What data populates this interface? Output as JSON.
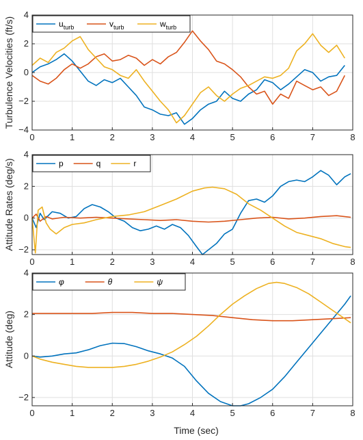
{
  "chart_data": [
    {
      "type": "line",
      "ylabel": "Turbulence Velocities (ft/s)",
      "xlabel": "",
      "xlim": [
        0,
        8
      ],
      "ylim": [
        -4,
        4
      ],
      "xticks": [
        "0",
        "1",
        "2",
        "3",
        "4",
        "5",
        "6",
        "7",
        "8"
      ],
      "yticks": [
        "-4",
        "-2",
        "0",
        "2",
        "4"
      ],
      "grid": true,
      "legend_position": "top-left",
      "series": [
        {
          "name": "u",
          "name_sub": "turb",
          "color": "#0072BD",
          "x": [
            0,
            0.2,
            0.4,
            0.6,
            0.8,
            1.0,
            1.2,
            1.4,
            1.6,
            1.8,
            2.0,
            2.2,
            2.4,
            2.6,
            2.8,
            3.0,
            3.2,
            3.4,
            3.6,
            3.8,
            4.0,
            4.2,
            4.4,
            4.6,
            4.8,
            5.0,
            5.2,
            5.4,
            5.6,
            5.8,
            6.0,
            6.2,
            6.4,
            6.6,
            6.8,
            7.0,
            7.2,
            7.4,
            7.6,
            7.8
          ],
          "y": [
            0,
            0.4,
            0.6,
            0.9,
            1.3,
            0.8,
            0.1,
            -0.6,
            -0.9,
            -0.5,
            -0.7,
            -0.4,
            -1.0,
            -1.6,
            -2.4,
            -2.6,
            -2.9,
            -3.0,
            -2.8,
            -3.6,
            -3.2,
            -2.6,
            -2.2,
            -2.0,
            -1.3,
            -1.8,
            -2.0,
            -1.5,
            -1.2,
            -0.5,
            -0.7,
            -1.2,
            -0.8,
            -0.3,
            0.2,
            0.0,
            -0.6,
            -0.3,
            -0.2,
            0.5
          ]
        },
        {
          "name": "v",
          "name_sub": "turb",
          "color": "#D95319",
          "x": [
            0,
            0.2,
            0.4,
            0.6,
            0.8,
            1.0,
            1.2,
            1.4,
            1.6,
            1.8,
            2.0,
            2.2,
            2.4,
            2.6,
            2.8,
            3.0,
            3.2,
            3.4,
            3.6,
            3.8,
            4.0,
            4.2,
            4.4,
            4.6,
            4.8,
            5.0,
            5.2,
            5.4,
            5.6,
            5.8,
            6.0,
            6.2,
            6.4,
            6.6,
            6.8,
            7.0,
            7.2,
            7.4,
            7.6,
            7.8
          ],
          "y": [
            -0.2,
            -0.6,
            -0.8,
            -0.4,
            0.2,
            0.6,
            0.3,
            0.6,
            1.1,
            1.3,
            0.8,
            0.9,
            1.2,
            1.0,
            0.5,
            0.9,
            0.6,
            1.1,
            1.4,
            2.1,
            2.9,
            2.2,
            1.6,
            0.8,
            0.6,
            0.2,
            -0.3,
            -1.0,
            -1.5,
            -1.3,
            -2.2,
            -1.5,
            -1.8,
            -0.6,
            -0.9,
            -1.2,
            -1.0,
            -1.6,
            -1.3,
            -0.2
          ]
        },
        {
          "name": "w",
          "name_sub": "turb",
          "color": "#EDB120",
          "x": [
            0,
            0.2,
            0.4,
            0.6,
            0.8,
            1.0,
            1.2,
            1.4,
            1.6,
            1.8,
            2.0,
            2.2,
            2.4,
            2.6,
            2.8,
            3.0,
            3.2,
            3.4,
            3.6,
            3.8,
            4.0,
            4.2,
            4.4,
            4.6,
            4.8,
            5.0,
            5.2,
            5.4,
            5.6,
            5.8,
            6.0,
            6.2,
            6.4,
            6.6,
            6.8,
            7.0,
            7.2,
            7.4,
            7.6,
            7.8
          ],
          "y": [
            0.5,
            1.0,
            0.7,
            1.4,
            1.7,
            2.2,
            2.5,
            1.6,
            1.0,
            0.4,
            0.2,
            -0.2,
            -0.4,
            0.2,
            -0.6,
            -1.3,
            -2.0,
            -2.6,
            -3.5,
            -3.0,
            -2.2,
            -1.4,
            -1.0,
            -1.6,
            -2.0,
            -1.5,
            -1.1,
            -0.9,
            -0.6,
            -0.3,
            -0.4,
            -0.2,
            0.3,
            1.5,
            2.0,
            2.7,
            1.9,
            1.4,
            1.9,
            1.0
          ]
        }
      ]
    },
    {
      "type": "line",
      "ylabel": "Attitude Rates (deg/s)",
      "xlabel": "",
      "xlim": [
        0,
        8
      ],
      "ylim": [
        -2.3,
        4
      ],
      "xticks": [
        "0",
        "1",
        "2",
        "3",
        "4",
        "5",
        "6",
        "7",
        "8"
      ],
      "yticks": [
        "-2",
        "0",
        "2",
        "4"
      ],
      "grid": true,
      "legend_position": "top-left",
      "series": [
        {
          "name": "p",
          "color": "#0072BD",
          "x": [
            0,
            0.1,
            0.2,
            0.3,
            0.5,
            0.7,
            0.9,
            1.1,
            1.3,
            1.5,
            1.7,
            1.9,
            2.1,
            2.3,
            2.5,
            2.7,
            2.9,
            3.1,
            3.3,
            3.5,
            3.7,
            3.9,
            4.1,
            4.25,
            4.4,
            4.6,
            4.8,
            5.0,
            5.2,
            5.4,
            5.6,
            5.8,
            6.0,
            6.2,
            6.4,
            6.6,
            6.8,
            7.0,
            7.2,
            7.4,
            7.6,
            7.8,
            7.95
          ],
          "y": [
            0,
            -0.6,
            0.3,
            -0.1,
            0.4,
            0.3,
            0.0,
            0.1,
            0.6,
            0.85,
            0.7,
            0.4,
            0.0,
            -0.2,
            -0.6,
            -0.8,
            -0.7,
            -0.5,
            -0.7,
            -0.4,
            -0.6,
            -1.1,
            -1.8,
            -2.3,
            -2.0,
            -1.6,
            -1.0,
            -0.7,
            0.3,
            1.1,
            1.2,
            1.0,
            1.4,
            2.0,
            2.3,
            2.4,
            2.3,
            2.6,
            3.0,
            2.7,
            2.1,
            2.6,
            2.8
          ]
        },
        {
          "name": "q",
          "color": "#D95319",
          "x": [
            0,
            0.1,
            0.2,
            0.35,
            0.5,
            0.8,
            1.2,
            1.6,
            2.0,
            2.4,
            2.8,
            3.2,
            3.6,
            4.0,
            4.4,
            4.8,
            5.2,
            5.6,
            6.0,
            6.4,
            6.8,
            7.2,
            7.6,
            7.95
          ],
          "y": [
            0,
            0.25,
            -0.2,
            0.1,
            -0.05,
            0.05,
            0.0,
            0.05,
            0.0,
            -0.05,
            -0.1,
            -0.15,
            -0.1,
            -0.2,
            -0.25,
            -0.2,
            -0.1,
            0.0,
            0.05,
            -0.05,
            0.0,
            0.1,
            0.15,
            0.05
          ]
        },
        {
          "name": "r",
          "color": "#EDB120",
          "x": [
            0,
            0.08,
            0.15,
            0.25,
            0.35,
            0.45,
            0.6,
            0.8,
            1.0,
            1.3,
            1.6,
            2.0,
            2.4,
            2.8,
            3.2,
            3.6,
            4.0,
            4.3,
            4.5,
            4.8,
            5.1,
            5.4,
            5.7,
            6.0,
            6.3,
            6.6,
            6.9,
            7.2,
            7.5,
            7.8,
            7.95
          ],
          "y": [
            0,
            -2.2,
            0.5,
            0.7,
            -0.3,
            -0.7,
            -1.0,
            -0.6,
            -0.4,
            -0.3,
            -0.1,
            0.1,
            0.2,
            0.4,
            0.8,
            1.2,
            1.7,
            1.9,
            1.95,
            1.85,
            1.5,
            0.9,
            0.5,
            0.0,
            -0.5,
            -0.9,
            -1.1,
            -1.3,
            -1.6,
            -1.8,
            -1.85
          ]
        }
      ]
    },
    {
      "type": "line",
      "ylabel": "Attitude (deg)",
      "xlabel": "Time (sec)",
      "xlim": [
        0,
        8
      ],
      "ylim": [
        -2.4,
        4
      ],
      "xticks": [
        "0",
        "1",
        "2",
        "3",
        "4",
        "5",
        "6",
        "7",
        "8"
      ],
      "yticks": [
        "-2",
        "0",
        "2",
        "4"
      ],
      "grid": true,
      "legend_position": "top-left",
      "series": [
        {
          "name": "φ",
          "color": "#0072BD",
          "x": [
            0,
            0.2,
            0.5,
            0.8,
            1.1,
            1.4,
            1.7,
            2.0,
            2.3,
            2.6,
            2.9,
            3.2,
            3.5,
            3.8,
            4.1,
            4.4,
            4.7,
            5.0,
            5.2,
            5.4,
            5.7,
            6.0,
            6.3,
            6.6,
            6.9,
            7.2,
            7.5,
            7.8,
            7.95
          ],
          "y": [
            0,
            -0.05,
            0.0,
            0.1,
            0.15,
            0.3,
            0.5,
            0.62,
            0.6,
            0.45,
            0.25,
            0.1,
            -0.1,
            -0.5,
            -1.2,
            -1.8,
            -2.2,
            -2.4,
            -2.4,
            -2.3,
            -2.0,
            -1.6,
            -1.0,
            -0.3,
            0.4,
            1.1,
            1.8,
            2.5,
            2.9
          ]
        },
        {
          "name": "θ",
          "color": "#D95319",
          "x": [
            0,
            0.5,
            1.0,
            1.5,
            2.0,
            2.5,
            3.0,
            3.5,
            4.0,
            4.5,
            5.0,
            5.5,
            6.0,
            6.5,
            7.0,
            7.5,
            7.95
          ],
          "y": [
            2.05,
            2.05,
            2.05,
            2.05,
            2.1,
            2.1,
            2.05,
            2.05,
            2.0,
            1.95,
            1.85,
            1.75,
            1.7,
            1.7,
            1.75,
            1.8,
            1.85
          ]
        },
        {
          "name": "ψ",
          "color": "#EDB120",
          "x": [
            0,
            0.2,
            0.5,
            0.8,
            1.1,
            1.4,
            1.7,
            2.0,
            2.3,
            2.6,
            2.9,
            3.2,
            3.5,
            3.8,
            4.1,
            4.4,
            4.7,
            5.0,
            5.3,
            5.6,
            5.9,
            6.1,
            6.3,
            6.6,
            6.9,
            7.2,
            7.5,
            7.8,
            7.95
          ],
          "y": [
            0,
            -0.15,
            -0.3,
            -0.4,
            -0.5,
            -0.55,
            -0.55,
            -0.55,
            -0.5,
            -0.4,
            -0.25,
            -0.05,
            0.2,
            0.55,
            0.95,
            1.45,
            2.0,
            2.5,
            2.9,
            3.25,
            3.5,
            3.55,
            3.5,
            3.3,
            3.0,
            2.6,
            2.2,
            1.8,
            1.6
          ]
        }
      ]
    }
  ]
}
